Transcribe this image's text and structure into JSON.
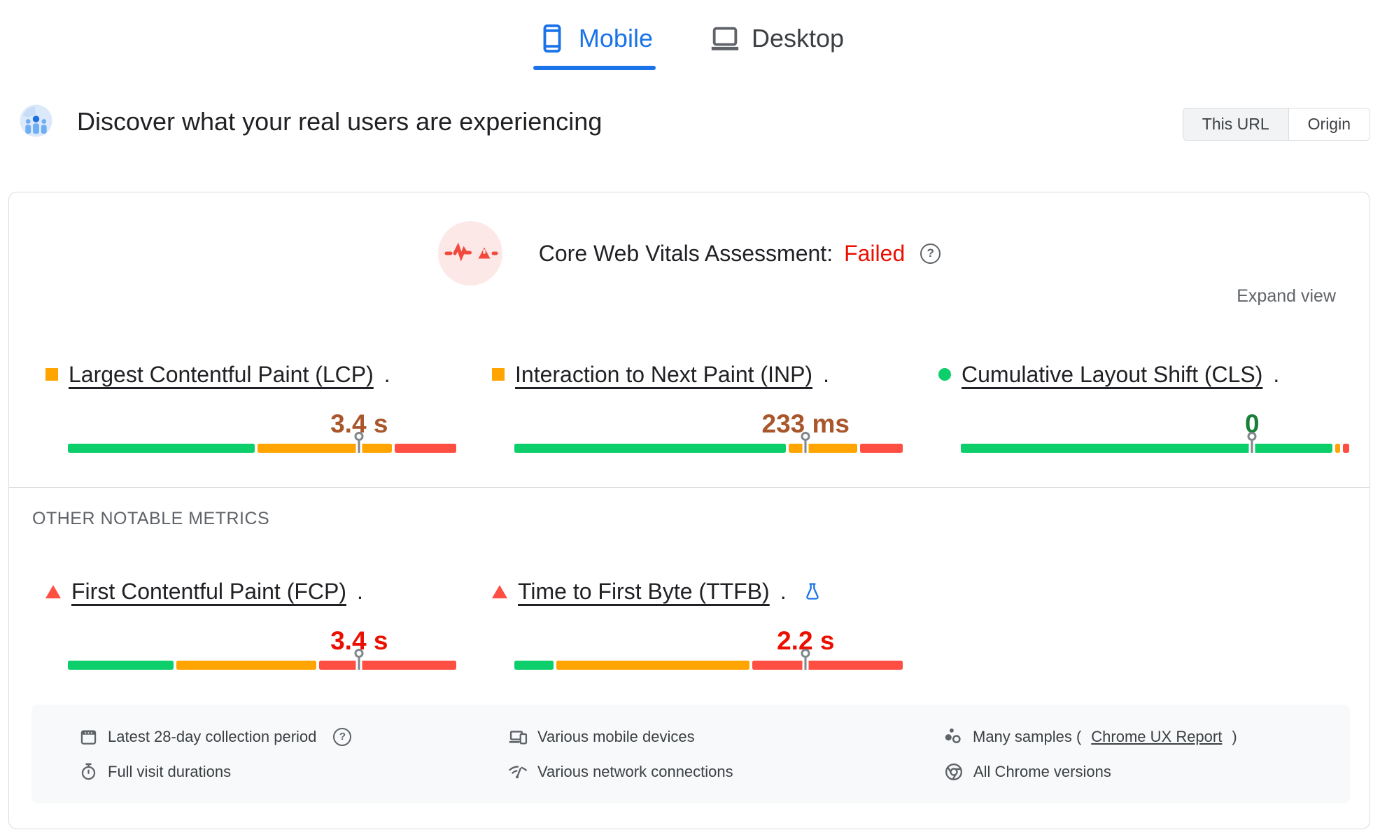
{
  "device_tabs": {
    "items": [
      {
        "label": "Mobile",
        "icon": "mobile-icon",
        "active": true
      },
      {
        "label": "Desktop",
        "icon": "desktop-icon",
        "active": false
      }
    ]
  },
  "field_header": {
    "title": "Discover what your real users are experiencing",
    "scope_toggle": {
      "options": [
        "This URL",
        "Origin"
      ],
      "selected": "This URL"
    }
  },
  "assessment": {
    "label": "Core Web Vitals Assessment:",
    "result": "Failed",
    "help_glyph": "?",
    "expand_label": "Expand view"
  },
  "other_metrics_title": "OTHER NOTABLE METRICS",
  "core_metrics": [
    {
      "label": "Largest Contentful Paint (LCP)",
      "suffix": ".",
      "value": "3.4 s",
      "status": "needs-improvement",
      "value_color": "#A9562B",
      "distribution": [
        47.8,
        34.3,
        15.8
      ],
      "marker_pct": 75
    },
    {
      "label": "Interaction to Next Paint (INP)",
      "suffix": ".",
      "value": "233 ms",
      "status": "needs-improvement",
      "value_color": "#A9562B",
      "distribution": [
        70,
        17.6,
        11
      ],
      "marker_pct": 75
    },
    {
      "label": "Cumulative Layout Shift (CLS)",
      "suffix": ".",
      "value": "0",
      "status": "good",
      "value_color": "#188038",
      "distribution": [
        95.9,
        1.3,
        1.6
      ],
      "marker_pct": 75
    }
  ],
  "other_metrics": [
    {
      "label": "First Contentful Paint (FCP)",
      "suffix": ".",
      "value": "3.4 s",
      "status": "poor",
      "value_color": "#EB0F00",
      "distribution": [
        27.2,
        36,
        35.3
      ],
      "marker_pct": 75
    },
    {
      "label": "Time to First Byte (TTFB)",
      "suffix": ".",
      "value": "2.2 s",
      "status": "poor",
      "value_color": "#EB0F00",
      "experimental": true,
      "distribution": [
        10,
        49.5,
        38.6
      ],
      "marker_pct": 75
    }
  ],
  "collection_info": {
    "items": [
      {
        "icon": "calendar-icon",
        "label": "Latest 28-day collection period",
        "has_help": true,
        "help_glyph": "?"
      },
      {
        "icon": "devices-icon",
        "label": "Various mobile devices"
      },
      {
        "icon": "samples-icon",
        "label": "Many samples (",
        "link": "Chrome UX Report",
        "after_link": ")"
      },
      {
        "icon": "stopwatch-icon",
        "label": "Full visit durations"
      },
      {
        "icon": "network-icon",
        "label": "Various network connections"
      },
      {
        "icon": "chrome-icon",
        "label": "All Chrome versions"
      }
    ]
  },
  "colors": {
    "accent-blue": "#1A73E8",
    "bar-good": "#0CCE6B",
    "bar-ni": "#FFA400",
    "bar-poor": "#FF4E42",
    "value-good": "#188038",
    "value-ni": "#A9562B",
    "value-poor": "#EB0F00",
    "failed-red": "#EB0F00",
    "pin-gray": "#80868B",
    "border-gray": "#DADCE0"
  }
}
